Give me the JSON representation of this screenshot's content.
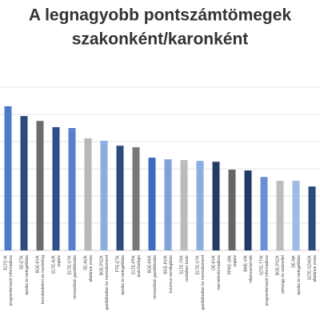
{
  "chart_data": {
    "type": "bar",
    "title": [
      "A legnagyobb pontszámtömegek",
      "szakonként/karonként"
    ],
    "categories": [
      "ELTE-IK",
      "SE-ETK",
      "BGE-KVK",
      "ELTE-ÁJK",
      "ELTE-GTK",
      "SE-ÁOK",
      "BGE-PSZK",
      "PTE-ETK",
      "ELTE-PPK",
      "BGE-KKK",
      "BGE-KVIK",
      "ELTE-TKK",
      "ELTE-GTK",
      "OE-KVK",
      "PPKE-JÁK",
      "BME-VIK",
      "SZTE-TTIK",
      "BGE-PSZK",
      "DE-NK",
      "SZTE-SZAOK"
    ],
    "programs": [
      "programtervező informatikus",
      "ápolás és betegellátás",
      "kereskedelem és marketing",
      "jogász",
      "nemzetközi gazdálkodás",
      "általános orvos",
      "gazdálkodási és menedzsment",
      "ápolás és betegellátás",
      "pszichológia",
      "nemzetközi gazdálkodás",
      "turizmus-vendéglátás",
      "osztatlan tanár",
      "gazdálkodási és menedzsment",
      "mérnökinformatikus",
      "jogász",
      "villamosmérnök",
      "programtervező informatikus",
      "pénzügy és számvitel",
      "ápolás és betegellátás",
      "általános orvos"
    ],
    "values": [
      5.3,
      4.94,
      4.76,
      4.53,
      4.5,
      4.12,
      4.03,
      3.85,
      3.79,
      3.41,
      3.35,
      3.32,
      3.29,
      3.26,
      2.97,
      2.94,
      2.7,
      2.56,
      2.56,
      2.35
    ],
    "colors": [
      "#4a7cc7",
      "#2e4a7a",
      "#6d6d6d",
      "#2c4f8a",
      "#5b7fcf",
      "#b8b8b8",
      "#8aaee0",
      "#2e4a7a",
      "#777777",
      "#3b6cc0",
      "#7fa3d9",
      "#bbbbbb",
      "#8aaee0",
      "#243b63",
      "#666666",
      "#1f3a66",
      "#6b8fd6",
      "#bcbcbc",
      "#9dbbe6",
      "#2a4a80"
    ],
    "ylim": [
      0,
      6
    ],
    "gridlines": [
      1,
      2,
      3,
      4,
      5,
      6
    ]
  }
}
